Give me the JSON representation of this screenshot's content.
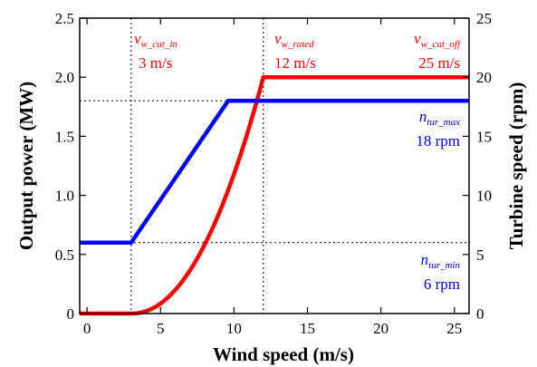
{
  "chart_data": {
    "type": "line",
    "xlabel": "Wind speed (m/s)",
    "ylabel_left": "Output power (MW)",
    "ylabel_right": "Turbine speed (rpm)",
    "xlim": [
      -0.5,
      26
    ],
    "ylim_left": [
      0,
      2.5
    ],
    "ylim_right": [
      0,
      25
    ],
    "x_ticks": [
      0,
      5,
      10,
      15,
      20,
      25
    ],
    "y_ticks_left": [
      "0",
      "0.5",
      "1.0",
      "1.5",
      "2.0",
      "2.5"
    ],
    "y_ticks_right": [
      "0",
      "5",
      "10",
      "15",
      "20",
      "25"
    ],
    "series": [
      {
        "axis": "left",
        "color": "#ff0000",
        "x": [
          -0.5,
          3,
          4,
          5,
          6,
          7,
          8,
          9,
          10,
          11,
          12,
          26
        ],
        "y": [
          0,
          0,
          0.05,
          0.12,
          0.22,
          0.37,
          0.56,
          0.8,
          1.12,
          1.5,
          2.0,
          2.0
        ]
      },
      {
        "axis": "right",
        "color": "#0000ff",
        "x": [
          -0.5,
          3,
          9.6,
          26
        ],
        "y": [
          6,
          6,
          18,
          18
        ]
      }
    ],
    "reference_lines": [
      {
        "orientation": "vertical",
        "axis": "x",
        "value": 3
      },
      {
        "orientation": "vertical",
        "axis": "x",
        "value": 12
      },
      {
        "orientation": "horizontal",
        "axis": "right",
        "value": 18
      },
      {
        "orientation": "horizontal",
        "axis": "right",
        "value": 6
      }
    ],
    "annotations": {
      "cut_in": {
        "symbol": "v",
        "sub": "w_cut_in",
        "value": "3 m/s",
        "color": "#ff0000"
      },
      "rated": {
        "symbol": "v",
        "sub": "w_rated",
        "value": "12 m/s",
        "color": "#ff0000"
      },
      "cut_off": {
        "symbol": "v",
        "sub": "w_cut_off",
        "value": "25 m/s",
        "color": "#ff0000"
      },
      "tur_max": {
        "symbol": "n",
        "sub": "tur_max",
        "value": "18 rpm",
        "color": "#0000ff"
      },
      "tur_min": {
        "symbol": "n",
        "sub": "tur_min",
        "value": "6 rpm",
        "color": "#0000ff"
      }
    },
    "grid": false,
    "legend": "none"
  }
}
